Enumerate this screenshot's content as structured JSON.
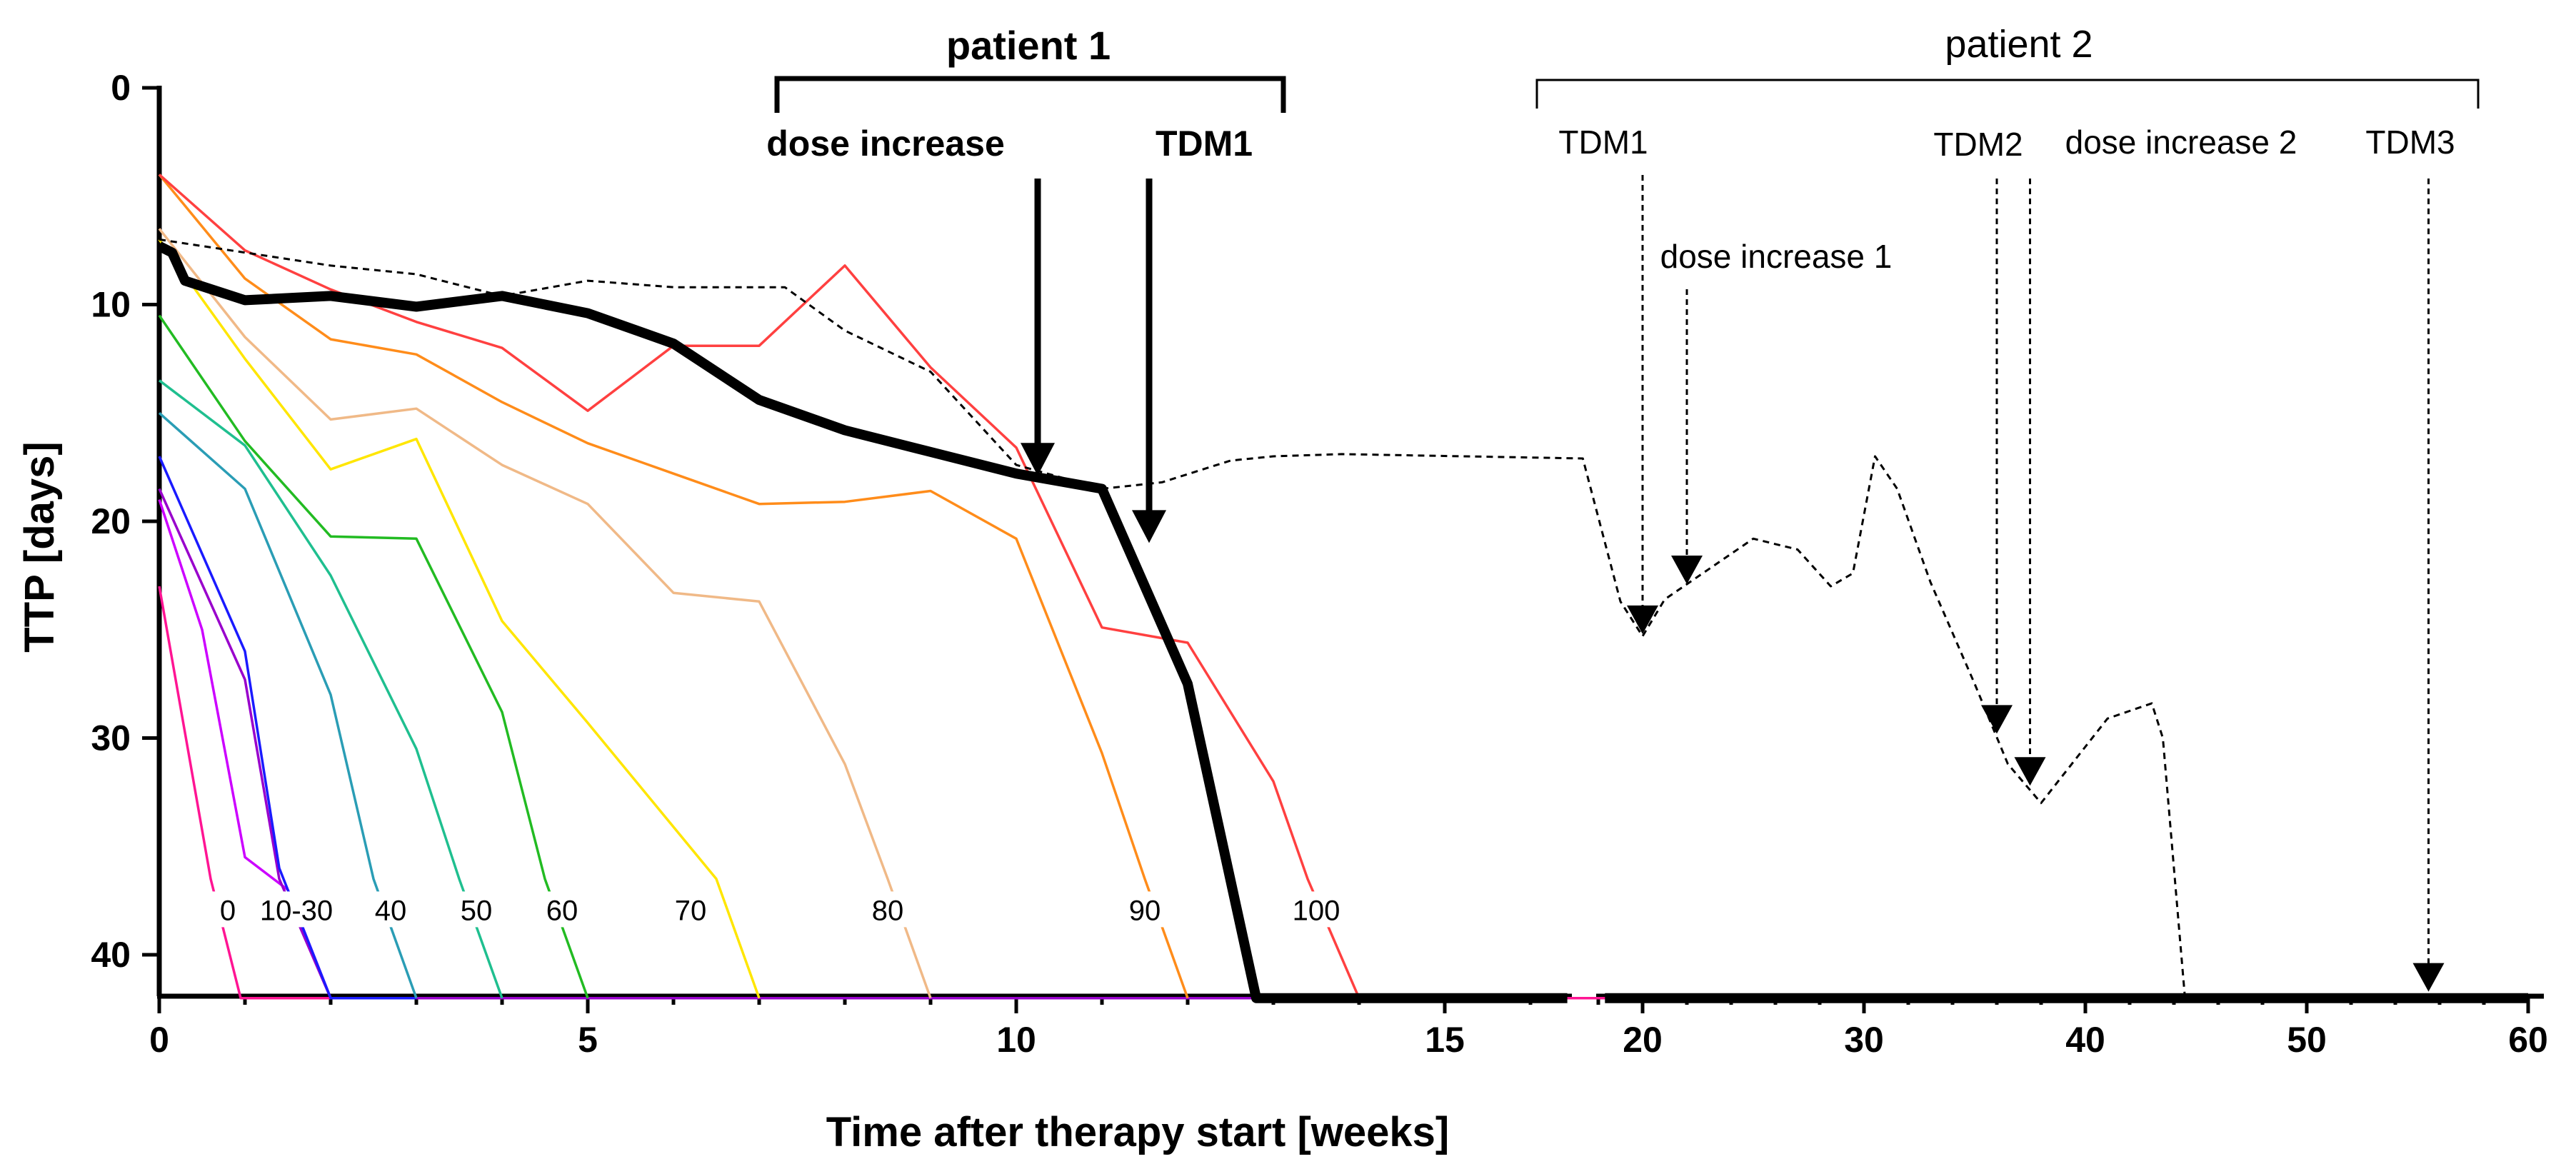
{
  "chart_data": {
    "type": "line",
    "title": "",
    "xlabel": "Time after therapy start [weeks]",
    "ylabel": "TTP [days]",
    "ylim": [
      0,
      42
    ],
    "y_inverted": true,
    "grid": false,
    "x_segments": [
      {
        "range": [
          0,
          16.5
        ],
        "ticks": [
          0,
          5,
          10,
          15
        ],
        "tick_labels": [
          "0",
          "5",
          "10",
          "15"
        ],
        "minor_step": 1
      },
      {
        "range": [
          18,
          60
        ],
        "ticks": [
          20,
          30,
          40,
          50,
          60
        ],
        "tick_labels": [
          "20",
          "30",
          "40",
          "50",
          "60"
        ],
        "minor_step": 2
      }
    ],
    "y_ticks": [
      0,
      10,
      20,
      30,
      40
    ],
    "y_tick_labels": [
      "0",
      "10",
      "20",
      "30",
      "40"
    ],
    "percentile_series": [
      {
        "name": "0",
        "color": "#ff1493",
        "points": [
          [
            0,
            23
          ],
          [
            0.6,
            36.5
          ],
          [
            0.95,
            42
          ],
          [
            20,
            42
          ]
        ]
      },
      {
        "name": "10-30",
        "color": "#cc00ff",
        "points": [
          [
            0,
            19
          ],
          [
            0.5,
            25
          ],
          [
            1,
            35.5
          ],
          [
            1.5,
            37
          ],
          [
            2,
            42
          ],
          [
            9,
            42
          ]
        ]
      },
      {
        "name": "10-30",
        "color": "#9900cc",
        "points": [
          [
            0,
            18.5
          ],
          [
            1,
            27.3
          ],
          [
            1.4,
            36.5
          ],
          [
            2,
            42
          ],
          [
            13,
            42
          ]
        ]
      },
      {
        "name": "10-30",
        "color": "#1a1aff",
        "points": [
          [
            0,
            17
          ],
          [
            1,
            26
          ],
          [
            1.4,
            36
          ],
          [
            2,
            42
          ],
          [
            3,
            42
          ]
        ]
      },
      {
        "name": "40",
        "color": "#2a9db5",
        "points": [
          [
            0,
            15
          ],
          [
            1,
            18.5
          ],
          [
            2,
            28
          ],
          [
            2.5,
            36.5
          ],
          [
            3,
            42
          ]
        ]
      },
      {
        "name": "50",
        "color": "#1fbf8f",
        "points": [
          [
            0,
            13.5
          ],
          [
            1,
            16.5
          ],
          [
            2,
            22.5
          ],
          [
            3,
            30.5
          ],
          [
            3.5,
            36.5
          ],
          [
            4,
            42
          ]
        ]
      },
      {
        "name": "60",
        "color": "#22bb22",
        "points": [
          [
            0,
            10.5
          ],
          [
            1,
            16.3
          ],
          [
            2,
            20.7
          ],
          [
            3,
            20.8
          ],
          [
            4,
            28.8
          ],
          [
            4.5,
            36.5
          ],
          [
            5,
            42
          ]
        ]
      },
      {
        "name": "70",
        "color": "#ffe600",
        "points": [
          [
            0,
            7
          ],
          [
            1,
            12.5
          ],
          [
            2,
            17.6
          ],
          [
            3,
            16.2
          ],
          [
            4,
            24.6
          ],
          [
            5,
            29.3
          ],
          [
            6.5,
            36.5
          ],
          [
            7,
            42
          ]
        ]
      },
      {
        "name": "80",
        "color": "#f0b987",
        "points": [
          [
            0,
            6.5
          ],
          [
            1,
            11.5
          ],
          [
            2,
            15.3
          ],
          [
            3,
            14.8
          ],
          [
            4,
            17.4
          ],
          [
            5,
            19.2
          ],
          [
            6,
            23.3
          ],
          [
            7,
            23.7
          ],
          [
            8,
            31.2
          ],
          [
            8.5,
            36.5
          ],
          [
            9,
            42
          ]
        ]
      },
      {
        "name": "90",
        "color": "#ff8c1a",
        "points": [
          [
            0,
            4
          ],
          [
            1,
            8.8
          ],
          [
            2,
            11.6
          ],
          [
            3,
            12.3
          ],
          [
            4,
            14.5
          ],
          [
            5,
            16.4
          ],
          [
            6,
            17.8
          ],
          [
            7,
            19.2
          ],
          [
            8,
            19.1
          ],
          [
            9,
            18.6
          ],
          [
            10,
            20.8
          ],
          [
            11,
            30.7
          ],
          [
            11.5,
            36.5
          ],
          [
            12,
            42
          ]
        ]
      },
      {
        "name": "100",
        "color": "#ff4040",
        "points": [
          [
            0,
            4
          ],
          [
            1,
            7.5
          ],
          [
            2,
            9.3
          ],
          [
            3,
            10.8
          ],
          [
            4,
            12
          ],
          [
            5,
            14.9
          ],
          [
            6,
            11.9
          ],
          [
            7,
            11.9
          ],
          [
            8,
            8.2
          ],
          [
            9,
            12.9
          ],
          [
            10,
            16.6
          ],
          [
            11,
            24.9
          ],
          [
            12,
            25.6
          ],
          [
            13,
            32
          ],
          [
            13.4,
            36.5
          ],
          [
            14,
            42
          ]
        ]
      }
    ],
    "percentile_labels": [
      {
        "text": "0",
        "x": 0.8
      },
      {
        "text": "10-30",
        "x": 1.6
      },
      {
        "text": "40",
        "x": 2.7
      },
      {
        "text": "50",
        "x": 3.7
      },
      {
        "text": "60",
        "x": 4.7
      },
      {
        "text": "70",
        "x": 6.2
      },
      {
        "text": "80",
        "x": 8.5
      },
      {
        "text": "90",
        "x": 11.5
      },
      {
        "text": "100",
        "x": 13.5
      }
    ],
    "percentile_label_y": 38.2,
    "patient1": {
      "name": "patient 1",
      "color": "#000000",
      "points": [
        [
          0,
          7.3
        ],
        [
          0.15,
          7.6
        ],
        [
          0.3,
          8.9
        ],
        [
          1,
          9.8
        ],
        [
          2,
          9.6
        ],
        [
          3,
          10.1
        ],
        [
          4,
          9.6
        ],
        [
          5,
          10.4
        ],
        [
          6,
          11.8
        ],
        [
          7,
          14.4
        ],
        [
          8,
          15.8
        ],
        [
          9,
          16.8
        ],
        [
          10,
          17.8
        ],
        [
          11,
          18.5
        ],
        [
          12,
          27.5
        ],
        [
          12.8,
          42
        ],
        [
          16.6,
          42
        ]
      ],
      "tail_points": [
        [
          18.3,
          42
        ],
        [
          60,
          42
        ]
      ]
    },
    "patient2": {
      "name": "patient 2",
      "color": "#000000",
      "points": [
        [
          0,
          7
        ],
        [
          2,
          8.2
        ],
        [
          3,
          8.6
        ],
        [
          4,
          9.6
        ],
        [
          5,
          8.9
        ],
        [
          6,
          9.2
        ],
        [
          7.3,
          9.2
        ],
        [
          8,
          11.2
        ],
        [
          9,
          13.1
        ],
        [
          10,
          17.4
        ],
        [
          11,
          18.5
        ],
        [
          11.7,
          18.2
        ],
        [
          12.5,
          17.2
        ],
        [
          13,
          17
        ],
        [
          13.8,
          16.9
        ],
        [
          17.3,
          17.1
        ],
        [
          19,
          23.7
        ],
        [
          20,
          25.3
        ],
        [
          21,
          23.6
        ],
        [
          23,
          22.2
        ],
        [
          25,
          20.8
        ],
        [
          27,
          21.3
        ],
        [
          28.5,
          23
        ],
        [
          29.5,
          22.4
        ],
        [
          30.5,
          17
        ],
        [
          31.5,
          18.5
        ],
        [
          33,
          22.8
        ],
        [
          35,
          27.5
        ],
        [
          36.5,
          31.2
        ],
        [
          38,
          33
        ],
        [
          41,
          29.1
        ],
        [
          43,
          28.4
        ],
        [
          43.5,
          30
        ],
        [
          44.5,
          42
        ]
      ]
    },
    "patient1_annotations": [
      {
        "label": "dose increase",
        "x": 10.25
      },
      {
        "label": "TDM1",
        "x": 11.55
      }
    ],
    "patient2_annotations": [
      {
        "label": "TDM1",
        "x": 20
      },
      {
        "label": "dose increase 1",
        "x": 22
      },
      {
        "label": "TDM2",
        "x": 36
      },
      {
        "label": "dose increase 2",
        "x": 37.5
      },
      {
        "label": "TDM3",
        "x": 55.5
      }
    ]
  }
}
